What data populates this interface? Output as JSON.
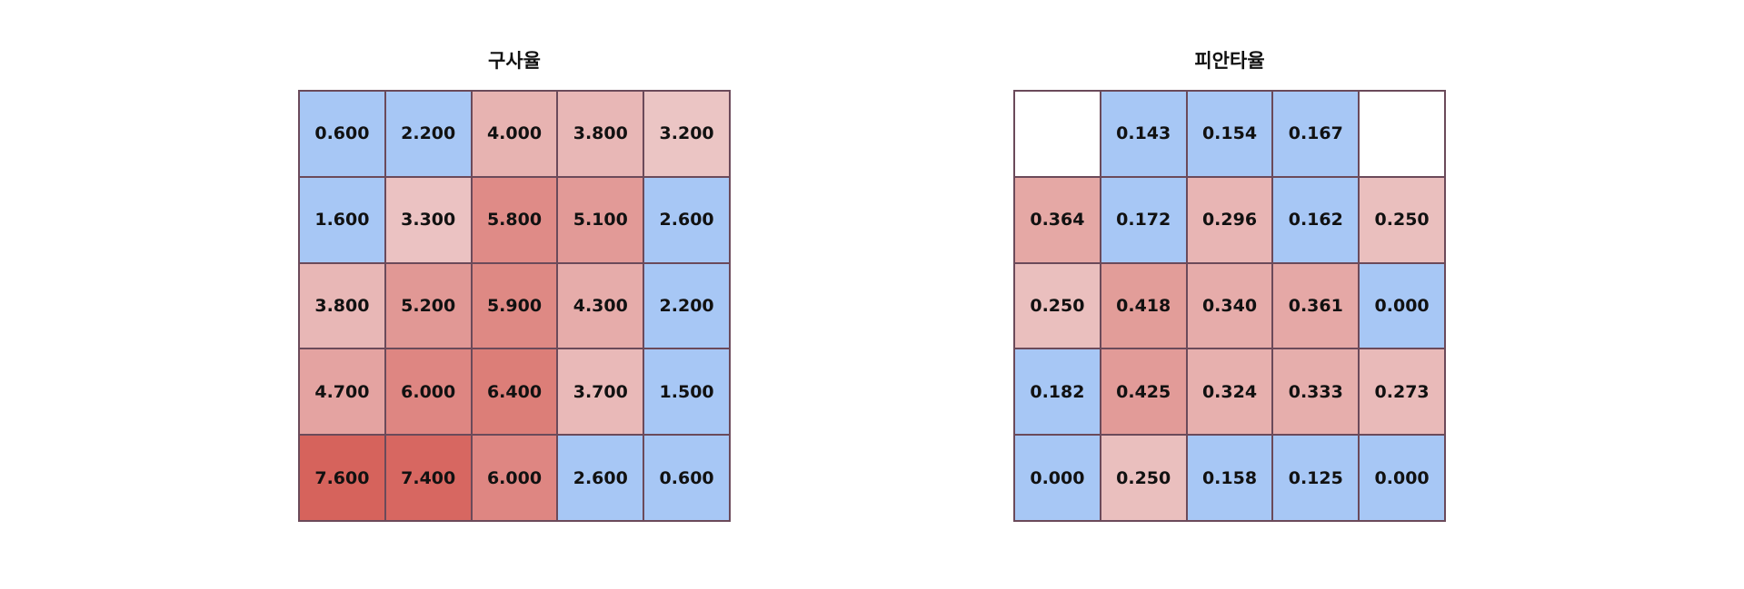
{
  "chart_data": [
    {
      "type": "heatmap",
      "title": "구사율",
      "rows": [
        [
          "0.600",
          "2.200",
          "4.000",
          "3.800",
          "3.200"
        ],
        [
          "1.600",
          "3.300",
          "5.800",
          "5.100",
          "2.600"
        ],
        [
          "3.800",
          "5.200",
          "5.900",
          "4.300",
          "2.200"
        ],
        [
          "4.700",
          "6.000",
          "6.400",
          "3.700",
          "1.500"
        ],
        [
          "7.600",
          "7.400",
          "6.000",
          "2.600",
          "0.600"
        ]
      ],
      "threshold": 3.0,
      "range": [
        3.0,
        7.6
      ]
    },
    {
      "type": "heatmap",
      "title": "피안타율",
      "rows": [
        [
          null,
          "0.143",
          "0.154",
          "0.167",
          null
        ],
        [
          "0.364",
          "0.172",
          "0.296",
          "0.162",
          "0.250"
        ],
        [
          "0.250",
          "0.418",
          "0.340",
          "0.361",
          "0.000"
        ],
        [
          "0.182",
          "0.425",
          "0.324",
          "0.333",
          "0.273"
        ],
        [
          "0.000",
          "0.250",
          "0.158",
          "0.125",
          "0.000"
        ]
      ],
      "threshold": 0.2,
      "range": [
        0.2,
        0.7
      ]
    }
  ],
  "colors": {
    "low": "#a7c7f5",
    "high_light": "#ecc9c9",
    "high_dark": "#d6635c",
    "empty": "#ffffff"
  }
}
